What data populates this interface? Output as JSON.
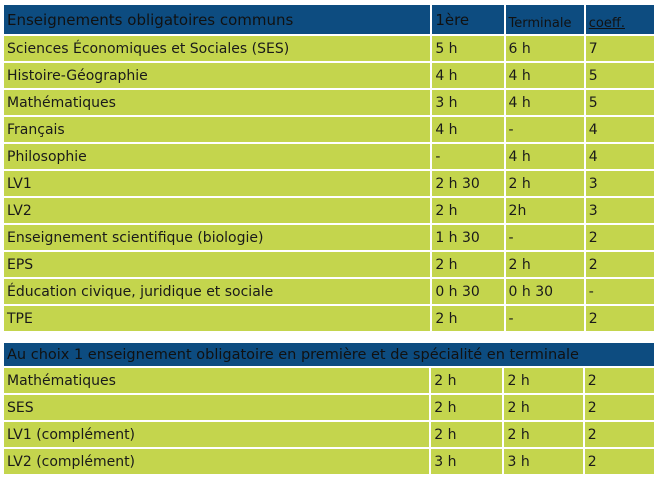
{
  "table1": {
    "headers": [
      "Enseignements obligatoires communs",
      "1ère",
      "Terminale",
      "coeff."
    ],
    "rows": [
      [
        "Sciences Économiques et Sociales (SES)",
        "5 h",
        "6 h",
        "7"
      ],
      [
        "Histoire-Géographie",
        "4 h",
        "4 h",
        "5"
      ],
      [
        "Mathématiques",
        "3 h",
        "4 h",
        "5"
      ],
      [
        "Français",
        "4 h",
        "-",
        "4"
      ],
      [
        "Philosophie",
        "-",
        "4 h",
        "4"
      ],
      [
        "LV1",
        "2 h 30",
        "2 h",
        "3"
      ],
      [
        "LV2",
        "2 h",
        "2h",
        "3"
      ],
      [
        "Enseignement scientifique (biologie)",
        "1 h 30",
        "-",
        "2"
      ],
      [
        "EPS",
        "2 h",
        "2 h",
        "2"
      ],
      [
        "Éducation civique, juridique et sociale",
        "0 h 30",
        "0 h 30",
        "-"
      ],
      [
        "TPE",
        "2 h",
        "-",
        "2"
      ]
    ]
  },
  "table2": {
    "header": "Au choix 1 enseignement obligatoire en première et de spécialité en terminale",
    "rows": [
      [
        "Mathématiques",
        "2 h",
        "2 h",
        "2"
      ],
      [
        "SES",
        "2 h",
        "2 h",
        "2"
      ],
      [
        "LV1 (complément)",
        "2 h",
        "2 h",
        "2"
      ],
      [
        "LV2 (complément)",
        "3 h",
        "3 h",
        "2"
      ]
    ]
  },
  "colors": {
    "header_bg": "#0d4c80",
    "row_bg": "#c4d54d"
  }
}
